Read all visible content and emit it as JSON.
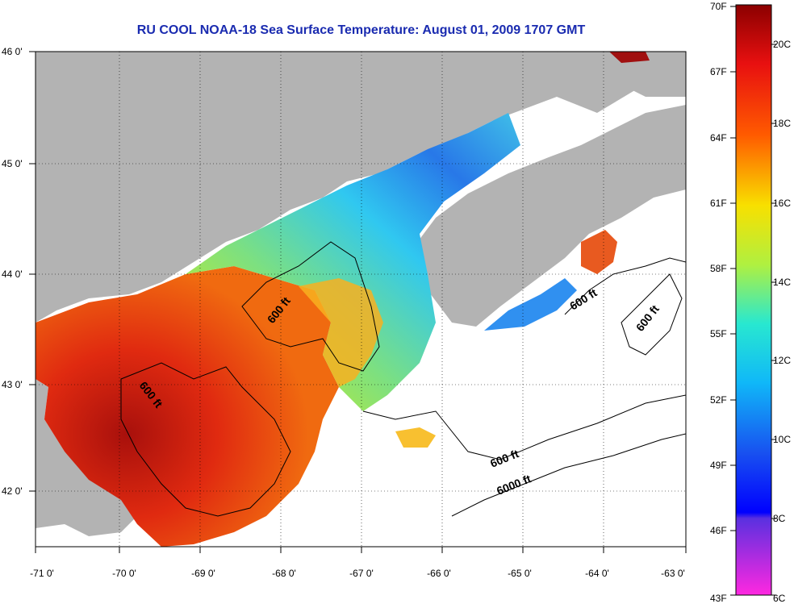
{
  "title": "RU COOL  NOAA-18  Sea Surface Temperature:  August 01, 2009 1707 GMT",
  "map": {
    "lon_ticks": [
      "-71 0'",
      "-70 0'",
      "-69 0'",
      "-68 0'",
      "-67 0'",
      "-66 0'",
      "-65 0'",
      "-64 0'",
      "-63 0'"
    ],
    "lat_ticks": [
      "46 0'",
      "45 0'",
      "44 0'",
      "43 0'",
      "42 0'"
    ],
    "contour_labels": [
      "600 ft",
      "600 ft",
      "600 ft",
      "600 ft",
      "600 ft",
      "6000 ft"
    ],
    "colors": {
      "land": "#b3b3b3",
      "no_data": "#ffffff",
      "warm": "#c81e0c",
      "cool": "#32c8f0"
    }
  },
  "colorbar": {
    "fahrenheit_labels": [
      "70F",
      "67F",
      "64F",
      "61F",
      "58F",
      "55F",
      "52F",
      "49F",
      "46F",
      "43F"
    ],
    "celsius_labels": [
      "20C",
      "18C",
      "16C",
      "14C",
      "12C",
      "10C",
      "8C",
      "6C"
    ]
  }
}
